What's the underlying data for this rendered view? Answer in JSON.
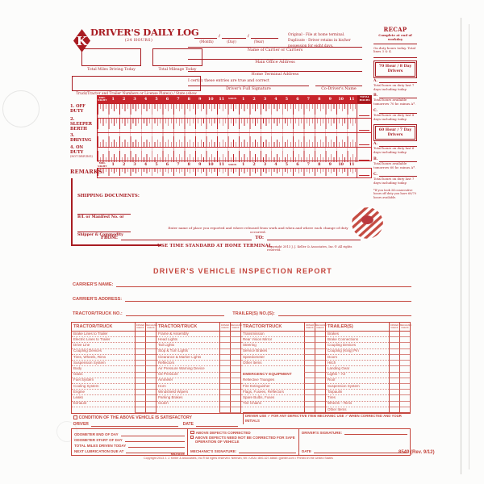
{
  "log": {
    "title": "DRIVER'S DAILY LOG",
    "subtitle": "(24 HOURS)",
    "date_labels": [
      "(Month)",
      "(Day)",
      "(Year)"
    ],
    "copies": [
      "Original - File at home terminal.",
      "Duplicate - Driver retains in his/her possession for eight days."
    ],
    "fields": {
      "total_miles": "Total Miles Driving Today",
      "total_mileage": "Total Mileage Today",
      "truck_numbers": "Truck/Tractor and Trailer Numbers or License Plate(s) / State (show each unit)",
      "carrier": "Name of Carrier or Carriers",
      "main_office": "Main Office Address",
      "home_terminal": "Home Terminal Address",
      "certify": "I certify these entries are true and correct",
      "signature": "Driver's Full Signature",
      "codriver": "Co-Driver's Name"
    },
    "grid": {
      "hours": [
        "MID-NIGHT",
        "1",
        "2",
        "3",
        "4",
        "5",
        "6",
        "7",
        "8",
        "9",
        "10",
        "11",
        "NOON",
        "1",
        "2",
        "3",
        "4",
        "5",
        "6",
        "7",
        "8",
        "9",
        "10",
        "11"
      ],
      "total_hours_label": "TOTAL HOURS",
      "rows": [
        {
          "label": "1. OFF DUTY",
          "sub": ""
        },
        {
          "label": "2. SLEEPER BERTH",
          "sub": ""
        },
        {
          "label": "3. DRIVING",
          "sub": ""
        },
        {
          "label": "4. ON DUTY",
          "sub": "(NOT DRIVING)"
        }
      ],
      "remarks_label": "REMARKS"
    },
    "recap": {
      "title": "RECAP",
      "subtitle": "Complete at end of workday",
      "on_duty_note": "On duty hours today. Total lines 3 & 4.",
      "sections": [
        {
          "box": "70 Hour / 8 Day Drivers",
          "items": [
            {
              "letter": "A.",
              "text": "Total hours on duty last 7 days including today."
            },
            {
              "letter": "B.",
              "text": "Total hours available tomorrow 70 hr. minus A*."
            },
            {
              "letter": "C.",
              "text": "Total hours on duty last 8 days including today."
            }
          ]
        },
        {
          "box": "60 Hour / 7 Day Drivers",
          "items": [
            {
              "letter": "A.",
              "text": "Total hours on duty last 6 days including today."
            },
            {
              "letter": "B.",
              "text": "Total hours available tomorrow 60 hr. minus A*."
            },
            {
              "letter": "C.",
              "text": "Total hours on duty last 7 days including today."
            }
          ]
        }
      ],
      "footnote": "*If you took 34 consecutive hours off duty you have 60/70 hours available."
    },
    "shipping": {
      "heading": "SHIPPING DOCUMENTS:",
      "manifest": "B/L or Manifest No. or",
      "shipper": "Shipper & Commodity",
      "instruction": "Enter name of place you reported and where released from work and when and where each change of duty occurred.",
      "from": "FROM:",
      "to": "TO:",
      "time_standard": "USE TIME STANDARD AT HOME TERMINAL",
      "copyright": "Copyright 2013 J. J. Keller & Associates, Inc.® All rights reserved."
    }
  },
  "dvir": {
    "title": "DRIVER'S VEHICLE INSPECTION REPORT",
    "carrier_name_label": "CARRIER'S NAME:",
    "carrier_address_label": "CARRIER'S ADDRESS:",
    "tractor_label": "TRACTOR/TRUCK NO.:",
    "trailer_label": "TRAILER(S) NO.(S):",
    "check_col_labels": [
      "DRIVER CHECK",
      "MECHANIC CHECK"
    ],
    "columns": [
      {
        "header": "TRACTOR/TRUCK",
        "items": [
          "Brake Lines to Trailer",
          "Electric Lines to Trailer",
          "Drive Line",
          "Coupling Devices",
          "Tires, Wheels, Rims",
          "Suspension System",
          "Body",
          "Glass",
          "Fuel System",
          "Cooling System",
          "Engine",
          "Leaks",
          "Exhaust"
        ]
      },
      {
        "header": "TRACTOR/TRUCK",
        "items": [
          "Frame & Assembly",
          "Head Lights",
          "Tail Lights",
          "Stop & Turn Lights",
          "Clearance & Marker Lights",
          "Reflectors",
          "Air Pressure Warning Device",
          "Oil Pressure",
          "Ammeter",
          "Horn",
          "Windshield Wipers",
          "Parking Brakes",
          "Clutch"
        ]
      },
      {
        "header": "TRACTOR/TRUCK",
        "items": [
          "Transmission",
          "Rear Vision Mirror",
          "Steering",
          "Service Brakes",
          "Speedometer",
          "Other Items",
          "",
          {
            "subheader": "EMERGENCY EQUIPMENT"
          },
          "Reflective Triangles",
          "Fire Extinguisher",
          "Flags, Fusees, Reflectors",
          "Spare Bulbs, Fuses",
          "Tire Chains"
        ]
      },
      {
        "header": "TRAILER(S)",
        "items": [
          "Brakes",
          "Brake Connections",
          "Coupling Devices",
          "Coupling (King) Pin",
          "Doors",
          "Hitch",
          "Landing Gear",
          "Lights – All",
          "Roof",
          "Suspension System",
          "Tarpaulin",
          "Tires",
          "Wheels – Rims",
          "Other Items"
        ]
      }
    ],
    "satisfactory": "CONDITION OF THE ABOVE VEHICLE IS SATISFACTORY",
    "legend_driver": "DRIVER USE ✓ FOR ANY DEFECTIVE ITEM",
    "legend_mechanic": "MECHANIC USE ✓ WHEN CORRECTED AND YOUR INITIALS",
    "driver_label": "DRIVER",
    "date_label": "DATE",
    "odometer_labels": [
      "ODOMETER END OF DAY",
      "ODOMETER START OF DAY",
      "TOTAL MILES DRIVEN TODAY",
      "NEXT LUBRICATION DUE AT"
    ],
    "mileage_label": "MILEAGE",
    "defect_checkboxes": [
      "ABOVE DEFECTS CORRECTED",
      "ABOVE DEFECTS NEED NOT BE CORRECTED FOR SAFE OPERATION OF VEHICLE"
    ],
    "mechanic_sig_label": "MECHANIC'S SIGNATURE:",
    "driver_sig_label": "DRIVER'S SIGNATURE:",
    "footer": "Copyright 2013 J. J. Keller & Associates, Inc.® All rights reserved. Neenah, WI • USA • 800-327-6868 • jjkeller.com • Printed in the United States",
    "form_number": "8549 (Rev. 9/12)"
  }
}
